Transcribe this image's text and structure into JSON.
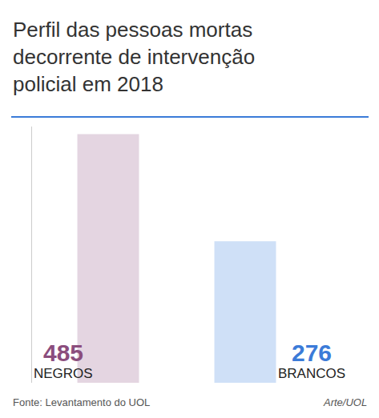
{
  "chart_data": {
    "type": "bar",
    "title": "Perfil das pessoas mortas decorrente de intervenção policial em 2018",
    "categories": [
      "NEGROS",
      "BRANCOS"
    ],
    "values": [
      485,
      276
    ],
    "colors": [
      "#e4d5e1",
      "#cfe0f7"
    ],
    "ylim": [
      0,
      500
    ],
    "yticks": [],
    "grid": false,
    "data_labels": true,
    "tick_labels": false,
    "annotations": [
      "Fonte: Levantamento do UOL",
      "Arte/UOL"
    ]
  }
}
